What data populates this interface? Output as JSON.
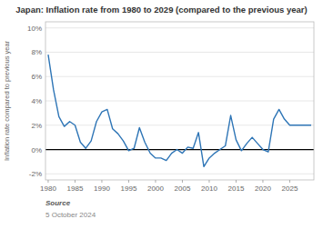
{
  "chart_data": {
    "type": "line",
    "title": "Japan: Inflation rate from 1980 to 2029 (compared to the previous year)",
    "y_label": "Inflation rate compared to previous year",
    "annotations": [
      "Source",
      "5 October 2024"
    ],
    "x": [
      1980,
      1981,
      1982,
      1983,
      1984,
      1985,
      1986,
      1987,
      1988,
      1989,
      1990,
      1991,
      1992,
      1993,
      1994,
      1995,
      1996,
      1997,
      1998,
      1999,
      2000,
      2001,
      2002,
      2003,
      2004,
      2005,
      2006,
      2007,
      2008,
      2009,
      2010,
      2011,
      2012,
      2013,
      2014,
      2015,
      2016,
      2017,
      2018,
      2019,
      2020,
      2021,
      2022,
      2023,
      2024,
      2025,
      2026,
      2027,
      2028,
      2029
    ],
    "values": [
      7.8,
      4.9,
      2.7,
      1.9,
      2.3,
      2.0,
      0.6,
      0.1,
      0.7,
      2.3,
      3.1,
      3.3,
      1.7,
      1.3,
      0.7,
      -0.1,
      0.1,
      1.8,
      0.6,
      -0.3,
      -0.7,
      -0.7,
      -0.9,
      -0.3,
      0.0,
      -0.3,
      0.2,
      0.1,
      1.4,
      -1.4,
      -0.7,
      -0.3,
      0.0,
      0.3,
      2.8,
      0.8,
      -0.1,
      0.5,
      1.0,
      0.5,
      0.0,
      -0.2,
      2.5,
      3.3,
      2.5,
      2.0,
      2.0,
      2.0,
      2.0,
      2.0
    ],
    "color": "#2e75b6",
    "xlim": [
      1979.5,
      2029.5
    ],
    "xticks": [
      1980,
      1985,
      1990,
      1995,
      2000,
      2005,
      2010,
      2015,
      2020,
      2025
    ],
    "ylim": [
      -2.5,
      10.5
    ],
    "yticks": [
      {
        "value": -2,
        "label": "-2%"
      },
      {
        "value": 0,
        "label": "0%"
      },
      {
        "value": 2,
        "label": "2%"
      },
      {
        "value": 4,
        "label": "4%"
      },
      {
        "value": 6,
        "label": "6%"
      },
      {
        "value": 8,
        "label": "8%"
      },
      {
        "value": 10,
        "label": "10%"
      }
    ],
    "grid": true
  }
}
